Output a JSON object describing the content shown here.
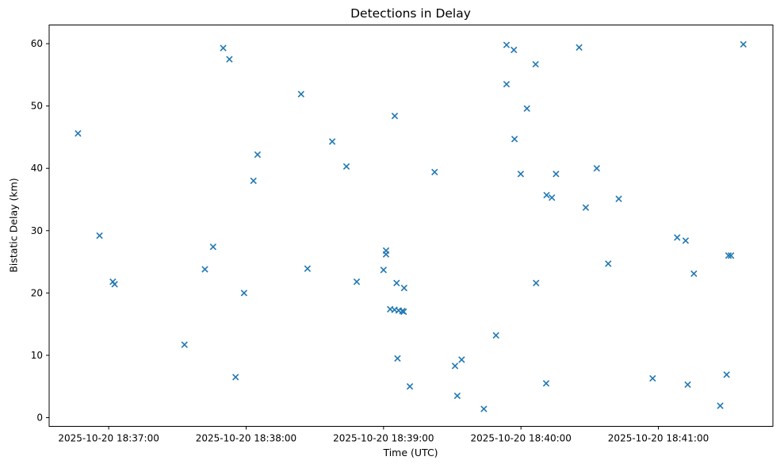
{
  "figure": {
    "title": "Detections in Delay",
    "xlabel": "Time (UTC)",
    "ylabel": "Bistatic Delay (km)"
  },
  "chart_data": {
    "type": "scatter",
    "title": "Detections in Delay",
    "xlabel": "Time (UTC)",
    "ylabel": "Bistatic Delay (km)",
    "marker": "x",
    "marker_color": "#1f77b4",
    "grid": false,
    "legend": "none",
    "x_unit": "seconds after 2025-10-20 18:36:00 UTC",
    "xlim_s": [
      34,
      350
    ],
    "ylim": [
      -1.4,
      63
    ],
    "x_ticks": [
      {
        "s": 60,
        "label": "2025-10-20 18:37:00"
      },
      {
        "s": 120,
        "label": "2025-10-20 18:38:00"
      },
      {
        "s": 180,
        "label": "2025-10-20 18:39:00"
      },
      {
        "s": 240,
        "label": "2025-10-20 18:40:00"
      },
      {
        "s": 300,
        "label": "2025-10-20 18:41:00"
      }
    ],
    "y_ticks": [
      0,
      10,
      20,
      30,
      40,
      50,
      60
    ],
    "points": [
      [
        46.6,
        45.6
      ],
      [
        56.0,
        29.2
      ],
      [
        61.8,
        21.8
      ],
      [
        62.6,
        21.4
      ],
      [
        93.1,
        11.7
      ],
      [
        102.0,
        23.8
      ],
      [
        105.6,
        27.4
      ],
      [
        110.0,
        59.3
      ],
      [
        112.7,
        57.5
      ],
      [
        115.4,
        6.5
      ],
      [
        119.1,
        20.0
      ],
      [
        123.2,
        38.0
      ],
      [
        125.0,
        42.2
      ],
      [
        144.0,
        51.9
      ],
      [
        146.8,
        23.9
      ],
      [
        157.6,
        44.3
      ],
      [
        163.8,
        40.3
      ],
      [
        168.3,
        21.8
      ],
      [
        180.0,
        23.7
      ],
      [
        181.1,
        26.8
      ],
      [
        181.1,
        26.2
      ],
      [
        182.9,
        17.4
      ],
      [
        184.8,
        17.3
      ],
      [
        184.9,
        48.4
      ],
      [
        185.7,
        21.6
      ],
      [
        186.1,
        9.5
      ],
      [
        186.6,
        17.2
      ],
      [
        188.2,
        17.1
      ],
      [
        188.8,
        17.0
      ],
      [
        189.0,
        20.8
      ],
      [
        191.5,
        5.0
      ],
      [
        202.3,
        39.4
      ],
      [
        211.2,
        8.3
      ],
      [
        212.2,
        3.5
      ],
      [
        214.1,
        9.3
      ],
      [
        223.8,
        1.4
      ],
      [
        229.1,
        13.2
      ],
      [
        233.7,
        53.5
      ],
      [
        233.7,
        59.8
      ],
      [
        236.9,
        59.0
      ],
      [
        237.2,
        44.7
      ],
      [
        239.9,
        39.1
      ],
      [
        242.6,
        49.6
      ],
      [
        246.4,
        56.7
      ],
      [
        246.6,
        21.6
      ],
      [
        251.0,
        5.5
      ],
      [
        251.2,
        35.7
      ],
      [
        253.5,
        35.3
      ],
      [
        255.3,
        39.1
      ],
      [
        265.4,
        59.4
      ],
      [
        268.3,
        33.7
      ],
      [
        273.1,
        40.0
      ],
      [
        278.1,
        24.7
      ],
      [
        282.7,
        35.1
      ],
      [
        297.5,
        6.3
      ],
      [
        308.2,
        28.9
      ],
      [
        311.9,
        28.4
      ],
      [
        312.8,
        5.3
      ],
      [
        315.5,
        23.1
      ],
      [
        327.0,
        1.9
      ],
      [
        329.8,
        6.9
      ],
      [
        330.6,
        26.0
      ],
      [
        331.7,
        26.0
      ],
      [
        337.1,
        59.9
      ]
    ]
  }
}
